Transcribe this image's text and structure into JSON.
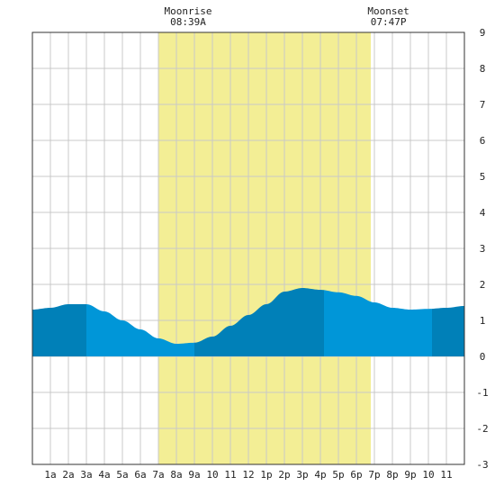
{
  "chart_data": {
    "type": "area",
    "title": "",
    "xlabel": "",
    "ylabel": "",
    "xlim": [
      0,
      24
    ],
    "ylim": [
      -3,
      9
    ],
    "yticks": [
      -3,
      -2,
      -1,
      0,
      1,
      2,
      3,
      4,
      5,
      6,
      7,
      8,
      9
    ],
    "xtick_labels": [
      "1a",
      "2a",
      "3a",
      "4a",
      "5a",
      "6a",
      "7a",
      "8a",
      "9a",
      "10",
      "11",
      "12",
      "1p",
      "2p",
      "3p",
      "4p",
      "5p",
      "6p",
      "7p",
      "8p",
      "9p",
      "10",
      "11"
    ],
    "grid": true,
    "moon_window": {
      "start_hour": 7,
      "end_hour": 18.8,
      "color": "#f3ee95"
    },
    "moonrise": {
      "label": "Moonrise",
      "time": "08:39A",
      "hour": 8.65
    },
    "moonset": {
      "label": "Moonset",
      "time": "07:47P",
      "hour": 19.78
    },
    "series": [
      {
        "x": [
          0,
          1,
          2,
          3,
          4,
          5,
          6,
          7,
          8,
          9,
          10,
          11,
          12,
          13,
          14,
          15,
          16,
          17,
          18,
          19,
          20,
          21,
          22,
          23,
          24
        ],
        "values": [
          1.3,
          1.35,
          1.45,
          1.45,
          1.25,
          1.0,
          0.75,
          0.5,
          0.35,
          0.38,
          0.55,
          0.85,
          1.15,
          1.45,
          1.8,
          1.9,
          1.85,
          1.78,
          1.68,
          1.5,
          1.35,
          1.3,
          1.32,
          1.35,
          1.4
        ]
      }
    ],
    "shade_bands": [
      {
        "from": 0,
        "to": 3,
        "color": "#0080b8"
      },
      {
        "from": 3,
        "to": 9,
        "color": "#0096d8"
      },
      {
        "from": 9,
        "to": 16.2,
        "color": "#0080b8"
      },
      {
        "from": 16.2,
        "to": 22.2,
        "color": "#0096d8"
      },
      {
        "from": 22.2,
        "to": 24,
        "color": "#0080b8"
      }
    ],
    "colors": {
      "grid": "#c8c8c8",
      "axis": "#333333"
    }
  }
}
